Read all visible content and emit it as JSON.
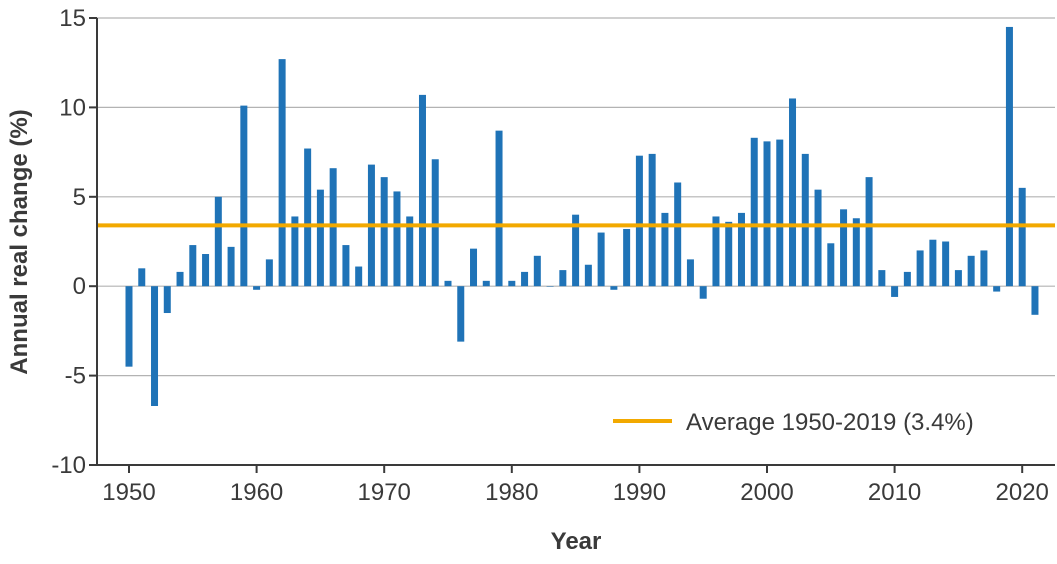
{
  "chart_data": {
    "type": "bar",
    "xlabel": "Year",
    "ylabel": "Annual real change (%)",
    "ylim": [
      -10,
      15
    ],
    "xlim": [
      1949,
      2022
    ],
    "y_ticks": [
      -10,
      -5,
      0,
      5,
      10,
      15
    ],
    "x_ticks": [
      1950,
      1960,
      1970,
      1980,
      1990,
      2000,
      2010,
      2020
    ],
    "grid": "horizontal",
    "x": [
      1950,
      1951,
      1952,
      1953,
      1954,
      1955,
      1956,
      1957,
      1958,
      1959,
      1960,
      1961,
      1962,
      1963,
      1964,
      1965,
      1966,
      1967,
      1968,
      1969,
      1970,
      1971,
      1972,
      1973,
      1974,
      1975,
      1976,
      1977,
      1978,
      1979,
      1980,
      1981,
      1982,
      1983,
      1984,
      1985,
      1986,
      1987,
      1988,
      1989,
      1990,
      1991,
      1992,
      1993,
      1994,
      1995,
      1996,
      1997,
      1998,
      1999,
      2000,
      2001,
      2002,
      2003,
      2004,
      2005,
      2006,
      2007,
      2008,
      2009,
      2010,
      2011,
      2012,
      2013,
      2014,
      2015,
      2016,
      2017,
      2018,
      2019,
      2020,
      2021
    ],
    "series": [
      {
        "values": [
          -4.5,
          1.0,
          -6.7,
          -1.5,
          0.8,
          2.3,
          1.8,
          5.0,
          2.2,
          10.1,
          -0.2,
          1.5,
          12.7,
          3.9,
          7.7,
          5.4,
          6.6,
          2.3,
          1.1,
          6.8,
          6.1,
          5.3,
          3.9,
          10.7,
          7.1,
          0.3,
          -3.1,
          2.1,
          0.3,
          8.7,
          0.3,
          0.8,
          1.7,
          0.0,
          0.9,
          4.0,
          1.2,
          3.0,
          -0.2,
          3.2,
          7.3,
          7.4,
          4.1,
          5.8,
          1.5,
          -0.7,
          3.9,
          3.6,
          4.1,
          8.3,
          8.1,
          8.2,
          10.5,
          7.4,
          5.4,
          2.4,
          4.3,
          3.8,
          6.1,
          0.9,
          -0.6,
          0.8,
          2.0,
          2.6,
          2.5,
          0.9,
          1.7,
          2.0,
          -0.3,
          14.5,
          5.5,
          -1.6
        ],
        "color": "#1f73b7"
      }
    ],
    "reference_line": {
      "label": "Average 1950-2019 (3.4%)",
      "value": 3.4,
      "color": "#f2a900"
    },
    "legend_position": "bottom-right"
  }
}
